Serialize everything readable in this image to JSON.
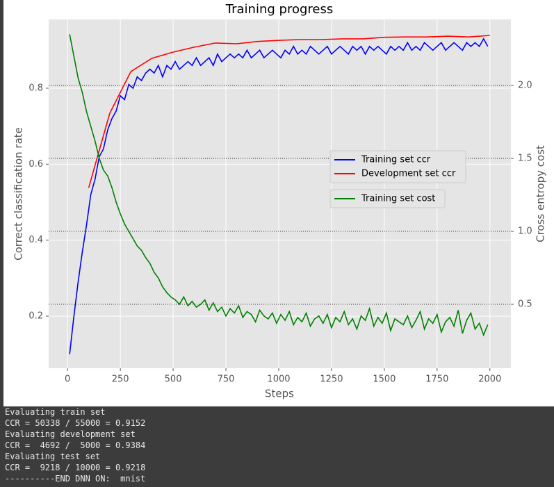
{
  "chart_data": {
    "type": "line",
    "title": "Training progress",
    "x_label": "Steps",
    "y_label": "Correct classification rate",
    "y2_label": "Cross entropy cost",
    "xlim": [
      -89.5,
      2099.5
    ],
    "xticks": [
      0,
      250,
      500,
      750,
      1000,
      1250,
      1500,
      1750,
      2000
    ],
    "ylim": [
      0.063,
      0.981
    ],
    "yticks": [
      0.2,
      0.4,
      0.6,
      0.8
    ],
    "y2lim": [
      0.062,
      2.452
    ],
    "y2ticks": [
      0.5,
      {
        "value": 1,
        "label": "1.0"
      },
      1.5,
      {
        "value": 2,
        "label": "2.0"
      }
    ],
    "grid": true,
    "series": [
      {
        "name": "Training set ccr",
        "color": "#0000ff",
        "x": [
          10,
          30,
          50,
          70,
          90,
          110,
          130,
          150,
          170,
          190,
          210,
          230,
          250,
          270,
          290,
          310,
          330,
          350,
          370,
          390,
          410,
          430,
          450,
          470,
          490,
          510,
          530,
          550,
          570,
          590,
          610,
          630,
          650,
          670,
          690,
          710,
          730,
          750,
          770,
          790,
          810,
          830,
          850,
          870,
          890,
          910,
          930,
          950,
          970,
          990,
          1010,
          1030,
          1050,
          1070,
          1090,
          1110,
          1130,
          1150,
          1170,
          1190,
          1210,
          1230,
          1250,
          1270,
          1290,
          1310,
          1330,
          1350,
          1370,
          1390,
          1410,
          1430,
          1450,
          1470,
          1490,
          1510,
          1530,
          1550,
          1570,
          1590,
          1610,
          1630,
          1650,
          1670,
          1690,
          1710,
          1730,
          1750,
          1770,
          1790,
          1810,
          1830,
          1850,
          1870,
          1890,
          1910,
          1930,
          1950,
          1970,
          1990
        ],
        "values": [
          0.1,
          0.2,
          0.29,
          0.37,
          0.44,
          0.52,
          0.56,
          0.62,
          0.64,
          0.69,
          0.72,
          0.74,
          0.78,
          0.77,
          0.81,
          0.8,
          0.83,
          0.82,
          0.84,
          0.85,
          0.84,
          0.86,
          0.83,
          0.86,
          0.85,
          0.87,
          0.85,
          0.86,
          0.87,
          0.86,
          0.88,
          0.86,
          0.87,
          0.88,
          0.86,
          0.89,
          0.87,
          0.88,
          0.89,
          0.88,
          0.89,
          0.88,
          0.9,
          0.88,
          0.89,
          0.9,
          0.88,
          0.89,
          0.9,
          0.89,
          0.88,
          0.9,
          0.89,
          0.91,
          0.89,
          0.9,
          0.89,
          0.91,
          0.9,
          0.89,
          0.9,
          0.91,
          0.89,
          0.9,
          0.91,
          0.9,
          0.89,
          0.91,
          0.9,
          0.91,
          0.89,
          0.91,
          0.9,
          0.91,
          0.9,
          0.89,
          0.91,
          0.9,
          0.91,
          0.9,
          0.92,
          0.9,
          0.91,
          0.9,
          0.92,
          0.91,
          0.9,
          0.91,
          0.92,
          0.9,
          0.91,
          0.92,
          0.91,
          0.9,
          0.92,
          0.91,
          0.92,
          0.91,
          0.93,
          0.91
        ]
      },
      {
        "name": "Development set ccr",
        "color": "#ff0000",
        "x": [
          100,
          200,
          300,
          400,
          500,
          600,
          700,
          800,
          900,
          1000,
          1100,
          1200,
          1300,
          1400,
          1500,
          1600,
          1700,
          1800,
          1900,
          2000
        ],
        "values": [
          0.538,
          0.734,
          0.844,
          0.879,
          0.895,
          0.908,
          0.919,
          0.917,
          0.923,
          0.926,
          0.928,
          0.928,
          0.93,
          0.93,
          0.934,
          0.935,
          0.935,
          0.937,
          0.935,
          0.939
        ]
      },
      {
        "name": "Training set cost",
        "color": "#008000",
        "axis": "y2",
        "x": [
          10,
          30,
          50,
          70,
          90,
          110,
          130,
          150,
          170,
          190,
          210,
          230,
          250,
          270,
          290,
          310,
          330,
          350,
          370,
          390,
          410,
          430,
          450,
          470,
          490,
          510,
          530,
          550,
          570,
          590,
          610,
          630,
          650,
          670,
          690,
          710,
          730,
          750,
          770,
          790,
          810,
          830,
          850,
          870,
          890,
          910,
          930,
          950,
          970,
          990,
          1010,
          1030,
          1050,
          1070,
          1090,
          1110,
          1130,
          1150,
          1170,
          1190,
          1210,
          1230,
          1250,
          1270,
          1290,
          1310,
          1330,
          1350,
          1370,
          1390,
          1410,
          1430,
          1450,
          1470,
          1490,
          1510,
          1530,
          1550,
          1570,
          1590,
          1610,
          1630,
          1650,
          1670,
          1690,
          1710,
          1730,
          1750,
          1770,
          1790,
          1810,
          1830,
          1850,
          1870,
          1890,
          1910,
          1930,
          1950,
          1970,
          1990
        ],
        "values": [
          2.35,
          2.2,
          2.05,
          1.95,
          1.82,
          1.72,
          1.62,
          1.5,
          1.42,
          1.38,
          1.3,
          1.2,
          1.12,
          1.05,
          1.0,
          0.95,
          0.9,
          0.87,
          0.82,
          0.78,
          0.72,
          0.68,
          0.62,
          0.58,
          0.55,
          0.53,
          0.5,
          0.55,
          0.49,
          0.52,
          0.48,
          0.5,
          0.53,
          0.46,
          0.51,
          0.45,
          0.48,
          0.42,
          0.47,
          0.44,
          0.49,
          0.41,
          0.45,
          0.43,
          0.38,
          0.46,
          0.42,
          0.4,
          0.44,
          0.37,
          0.43,
          0.39,
          0.45,
          0.36,
          0.41,
          0.38,
          0.44,
          0.35,
          0.4,
          0.42,
          0.37,
          0.43,
          0.34,
          0.41,
          0.38,
          0.45,
          0.36,
          0.4,
          0.33,
          0.42,
          0.39,
          0.47,
          0.35,
          0.41,
          0.37,
          0.44,
          0.32,
          0.4,
          0.38,
          0.36,
          0.42,
          0.34,
          0.39,
          0.45,
          0.33,
          0.4,
          0.37,
          0.43,
          0.31,
          0.38,
          0.41,
          0.35,
          0.46,
          0.3,
          0.39,
          0.44,
          0.33,
          0.37,
          0.29,
          0.36
        ]
      }
    ]
  },
  "console": {
    "lines": [
      "Evaluating train set",
      "CCR = 50338 / 55000 = 0.9152",
      "Evaluating development set",
      "CCR =  4692 /  5000 = 0.9384",
      "Evaluating test set",
      "CCR =  9218 / 10000 = 0.9218",
      "----------END DNN ON:  mnist"
    ]
  }
}
